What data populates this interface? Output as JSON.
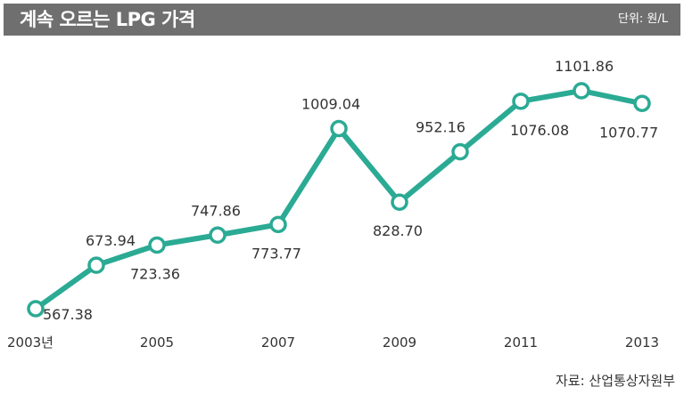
{
  "header": {
    "title": "계속 오르는 LPG 가격",
    "unit": "단위: 원/L"
  },
  "source": "자료: 산업통상자원부",
  "colors": {
    "line": "#2baa94",
    "header_bg": "#6f6f6f"
  },
  "chart_data": {
    "type": "line",
    "x": [
      2003,
      2004,
      2005,
      2006,
      2007,
      2008,
      2009,
      2010,
      2011,
      2012,
      2013
    ],
    "x_tick_labels": [
      "2003년",
      "2005",
      "2007",
      "2009",
      "2011",
      "2013"
    ],
    "series": [
      {
        "values": [
          567.38,
          673.94,
          723.36,
          747.86,
          773.77,
          1009.04,
          828.7,
          952.16,
          1076.08,
          1101.86,
          1070.77
        ],
        "value_labels": [
          "567.38",
          "673.94",
          "723.36",
          "747.86",
          "773.77",
          "1009.04",
          "828.70",
          "952.16",
          "1076.08",
          "1101.86",
          "1070.77"
        ]
      }
    ],
    "title": "계속 오르는 LPG 가격",
    "ylabel": "",
    "xlabel": "",
    "grid": false,
    "legend": "none"
  }
}
